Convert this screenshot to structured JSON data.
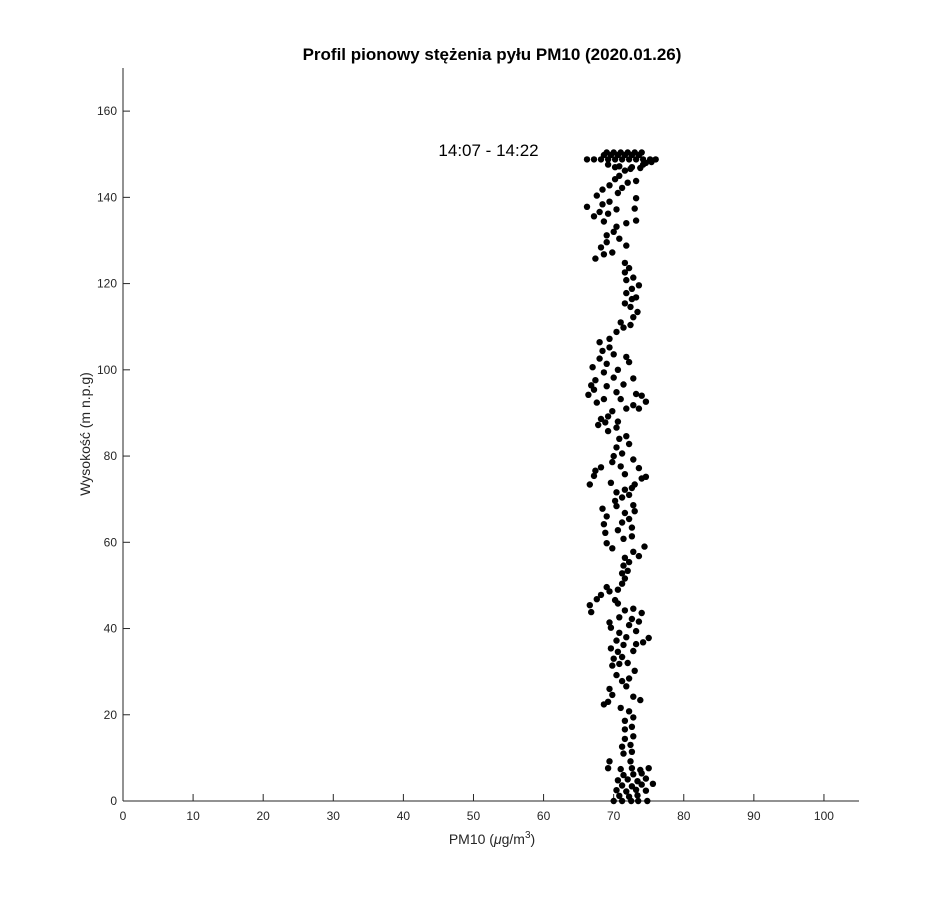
{
  "chart_data": {
    "type": "scatter",
    "title": "Profil pionowy stężenia pyłu PM10 (2020.01.26)",
    "xlabel_main": "PM10 (",
    "xlabel_mu": "μ",
    "xlabel_unit": "g/m",
    "xlabel_sup": "3",
    "xlabel_close": ")",
    "ylabel": "Wysokość (m n.p.g)",
    "annotation": {
      "text": "14:07 - 14:22",
      "x": 45,
      "y": 150
    },
    "xlim": [
      0,
      105
    ],
    "ylim": [
      0,
      170
    ],
    "xticks": [
      0,
      10,
      20,
      30,
      40,
      50,
      60,
      70,
      80,
      90,
      100
    ],
    "yticks": [
      0,
      20,
      40,
      60,
      80,
      100,
      120,
      140,
      160
    ],
    "grid": false,
    "marker_color": "#000000",
    "series": [
      {
        "points": [
          [
            70.0,
            0.0
          ],
          [
            71.2,
            0.0
          ],
          [
            72.5,
            0.0
          ],
          [
            73.5,
            0.0
          ],
          [
            74.8,
            0.0
          ],
          [
            70.8,
            1.2
          ],
          [
            72.2,
            1.0
          ],
          [
            73.4,
            1.3
          ],
          [
            70.4,
            2.5
          ],
          [
            71.8,
            2.2
          ],
          [
            73.2,
            2.6
          ],
          [
            74.6,
            2.4
          ],
          [
            71.2,
            3.6
          ],
          [
            72.6,
            3.4
          ],
          [
            74.0,
            3.8
          ],
          [
            75.6,
            4.0
          ],
          [
            70.6,
            4.8
          ],
          [
            72.0,
            5.0
          ],
          [
            73.4,
            4.6
          ],
          [
            74.6,
            5.2
          ],
          [
            71.4,
            6.0
          ],
          [
            72.8,
            6.2
          ],
          [
            74.0,
            6.4
          ],
          [
            69.2,
            7.6
          ],
          [
            71.0,
            7.4
          ],
          [
            72.6,
            7.6
          ],
          [
            73.8,
            7.2
          ],
          [
            75.0,
            7.6
          ],
          [
            69.4,
            9.2
          ],
          [
            72.4,
            9.2
          ],
          [
            71.4,
            11.0
          ],
          [
            72.6,
            11.4
          ],
          [
            71.2,
            12.6
          ],
          [
            72.4,
            13.0
          ],
          [
            71.6,
            14.4
          ],
          [
            72.8,
            15.0
          ],
          [
            71.6,
            16.6
          ],
          [
            72.6,
            17.2
          ],
          [
            71.6,
            18.6
          ],
          [
            72.8,
            19.4
          ],
          [
            72.2,
            20.8
          ],
          [
            71.0,
            21.6
          ],
          [
            68.6,
            22.4
          ],
          [
            69.2,
            23.0
          ],
          [
            73.8,
            23.4
          ],
          [
            69.8,
            24.6
          ],
          [
            72.8,
            24.2
          ],
          [
            69.4,
            26.0
          ],
          [
            71.8,
            26.6
          ],
          [
            71.2,
            27.8
          ],
          [
            72.2,
            28.4
          ],
          [
            70.4,
            29.2
          ],
          [
            73.0,
            30.2
          ],
          [
            69.8,
            31.4
          ],
          [
            70.8,
            31.8
          ],
          [
            72.0,
            32.0
          ],
          [
            70.0,
            33.0
          ],
          [
            71.2,
            33.4
          ],
          [
            70.6,
            34.6
          ],
          [
            69.6,
            35.4
          ],
          [
            72.8,
            34.8
          ],
          [
            71.4,
            36.2
          ],
          [
            73.2,
            36.4
          ],
          [
            74.2,
            36.8
          ],
          [
            70.4,
            37.2
          ],
          [
            71.8,
            38.0
          ],
          [
            75.0,
            37.8
          ],
          [
            70.8,
            39.0
          ],
          [
            73.2,
            39.4
          ],
          [
            69.6,
            40.2
          ],
          [
            72.2,
            40.8
          ],
          [
            69.4,
            41.4
          ],
          [
            73.6,
            41.6
          ],
          [
            70.8,
            42.6
          ],
          [
            72.6,
            42.2
          ],
          [
            74.0,
            43.6
          ],
          [
            66.8,
            43.8
          ],
          [
            71.6,
            44.2
          ],
          [
            72.8,
            44.6
          ],
          [
            66.6,
            45.4
          ],
          [
            70.6,
            45.8
          ],
          [
            67.6,
            46.8
          ],
          [
            70.2,
            46.6
          ],
          [
            68.2,
            47.8
          ],
          [
            69.4,
            48.6
          ],
          [
            69.0,
            49.6
          ],
          [
            70.6,
            49.0
          ],
          [
            71.2,
            50.4
          ],
          [
            71.6,
            51.6
          ],
          [
            71.2,
            52.8
          ],
          [
            72.0,
            53.4
          ],
          [
            71.4,
            54.6
          ],
          [
            72.2,
            55.4
          ],
          [
            71.6,
            56.4
          ],
          [
            73.6,
            56.8
          ],
          [
            72.8,
            57.8
          ],
          [
            69.8,
            58.6
          ],
          [
            74.4,
            59.0
          ],
          [
            69.0,
            59.8
          ],
          [
            71.4,
            60.8
          ],
          [
            72.6,
            61.4
          ],
          [
            68.8,
            62.2
          ],
          [
            70.6,
            62.8
          ],
          [
            72.6,
            63.4
          ],
          [
            68.6,
            64.2
          ],
          [
            71.2,
            64.6
          ],
          [
            72.2,
            65.4
          ],
          [
            69.0,
            66.0
          ],
          [
            71.6,
            66.8
          ],
          [
            73.0,
            67.2
          ],
          [
            68.4,
            67.8
          ],
          [
            70.4,
            68.4
          ],
          [
            72.8,
            68.6
          ],
          [
            70.2,
            69.6
          ],
          [
            71.2,
            70.4
          ],
          [
            72.2,
            71.0
          ],
          [
            70.4,
            71.6
          ],
          [
            71.6,
            72.2
          ],
          [
            72.6,
            72.6
          ],
          [
            73.0,
            73.4
          ],
          [
            69.6,
            73.8
          ],
          [
            74.0,
            74.8
          ],
          [
            66.6,
            73.4
          ],
          [
            67.2,
            75.4
          ],
          [
            71.6,
            75.8
          ],
          [
            74.6,
            75.2
          ],
          [
            67.4,
            76.6
          ],
          [
            68.2,
            77.4
          ],
          [
            71.0,
            77.6
          ],
          [
            73.6,
            77.2
          ],
          [
            69.8,
            78.6
          ],
          [
            72.8,
            79.2
          ],
          [
            70.0,
            80.0
          ],
          [
            71.2,
            80.6
          ],
          [
            70.4,
            82.0
          ],
          [
            72.2,
            82.8
          ],
          [
            70.8,
            84.0
          ],
          [
            71.8,
            84.6
          ],
          [
            69.2,
            85.8
          ],
          [
            70.4,
            86.6
          ],
          [
            67.8,
            87.2
          ],
          [
            68.8,
            87.8
          ],
          [
            70.6,
            88.0
          ],
          [
            68.2,
            88.6
          ],
          [
            69.2,
            89.2
          ],
          [
            69.8,
            90.4
          ],
          [
            71.8,
            91.0
          ],
          [
            72.8,
            91.8
          ],
          [
            73.6,
            91.0
          ],
          [
            67.6,
            92.4
          ],
          [
            68.6,
            93.2
          ],
          [
            71.0,
            93.2
          ],
          [
            74.6,
            92.6
          ],
          [
            66.4,
            94.2
          ],
          [
            67.2,
            95.4
          ],
          [
            70.4,
            94.8
          ],
          [
            73.2,
            94.4
          ],
          [
            74.0,
            94.0
          ],
          [
            66.8,
            96.4
          ],
          [
            69.0,
            96.2
          ],
          [
            71.4,
            96.6
          ],
          [
            67.4,
            97.6
          ],
          [
            70.0,
            98.2
          ],
          [
            72.8,
            98.0
          ],
          [
            68.6,
            99.4
          ],
          [
            70.6,
            100.0
          ],
          [
            67.0,
            100.6
          ],
          [
            69.0,
            101.4
          ],
          [
            72.2,
            101.8
          ],
          [
            68.0,
            102.6
          ],
          [
            70.0,
            103.6
          ],
          [
            71.8,
            103.0
          ],
          [
            68.4,
            104.4
          ],
          [
            69.4,
            105.2
          ],
          [
            68.0,
            106.4
          ],
          [
            69.4,
            107.2
          ],
          [
            70.4,
            108.8
          ],
          [
            71.4,
            109.8
          ],
          [
            72.4,
            110.4
          ],
          [
            71.0,
            111.0
          ],
          [
            72.8,
            112.2
          ],
          [
            73.4,
            113.4
          ],
          [
            72.4,
            114.6
          ],
          [
            71.6,
            115.4
          ],
          [
            72.6,
            116.4
          ],
          [
            73.2,
            116.8
          ],
          [
            71.8,
            117.8
          ],
          [
            72.6,
            118.8
          ],
          [
            73.6,
            119.6
          ],
          [
            71.8,
            120.8
          ],
          [
            72.8,
            121.4
          ],
          [
            71.6,
            122.6
          ],
          [
            72.2,
            123.6
          ],
          [
            71.6,
            124.8
          ],
          [
            67.4,
            125.8
          ],
          [
            68.6,
            126.8
          ],
          [
            69.8,
            127.2
          ],
          [
            68.2,
            128.4
          ],
          [
            71.8,
            128.8
          ],
          [
            69.0,
            129.6
          ],
          [
            70.8,
            130.4
          ],
          [
            69.0,
            131.2
          ],
          [
            70.0,
            132.0
          ],
          [
            70.4,
            133.2
          ],
          [
            71.8,
            134.0
          ],
          [
            68.6,
            134.4
          ],
          [
            73.2,
            134.6
          ],
          [
            67.2,
            135.6
          ],
          [
            69.2,
            136.2
          ],
          [
            68.0,
            136.6
          ],
          [
            70.4,
            137.2
          ],
          [
            73.0,
            137.4
          ],
          [
            66.2,
            137.8
          ],
          [
            68.4,
            138.4
          ],
          [
            69.4,
            139.0
          ],
          [
            73.2,
            139.8
          ],
          [
            67.6,
            140.4
          ],
          [
            70.6,
            141.0
          ],
          [
            68.4,
            141.8
          ],
          [
            71.2,
            142.2
          ],
          [
            69.4,
            142.8
          ],
          [
            72.0,
            143.4
          ],
          [
            70.2,
            144.2
          ],
          [
            73.2,
            143.8
          ],
          [
            70.8,
            145.0
          ],
          [
            71.6,
            146.2
          ],
          [
            72.4,
            146.6
          ],
          [
            70.8,
            147.2
          ],
          [
            69.2,
            147.6
          ],
          [
            74.2,
            147.6
          ],
          [
            66.2,
            148.8
          ],
          [
            67.2,
            148.8
          ],
          [
            68.2,
            148.8
          ],
          [
            69.2,
            148.8
          ],
          [
            70.2,
            148.8
          ],
          [
            71.2,
            148.8
          ],
          [
            72.2,
            148.8
          ],
          [
            73.2,
            148.8
          ],
          [
            74.2,
            148.8
          ],
          [
            75.2,
            148.8
          ],
          [
            76.0,
            148.8
          ],
          [
            68.6,
            149.8
          ],
          [
            69.6,
            149.8
          ],
          [
            70.6,
            149.8
          ],
          [
            71.6,
            149.8
          ],
          [
            72.6,
            149.8
          ],
          [
            73.6,
            149.8
          ],
          [
            69.0,
            150.4
          ],
          [
            70.0,
            150.4
          ],
          [
            71.0,
            150.4
          ],
          [
            72.0,
            150.4
          ],
          [
            73.0,
            150.4
          ],
          [
            74.0,
            150.4
          ],
          [
            74.6,
            148.0
          ],
          [
            75.4,
            148.2
          ],
          [
            72.6,
            147.0
          ],
          [
            70.2,
            147.0
          ],
          [
            73.8,
            146.8
          ]
        ]
      }
    ]
  }
}
